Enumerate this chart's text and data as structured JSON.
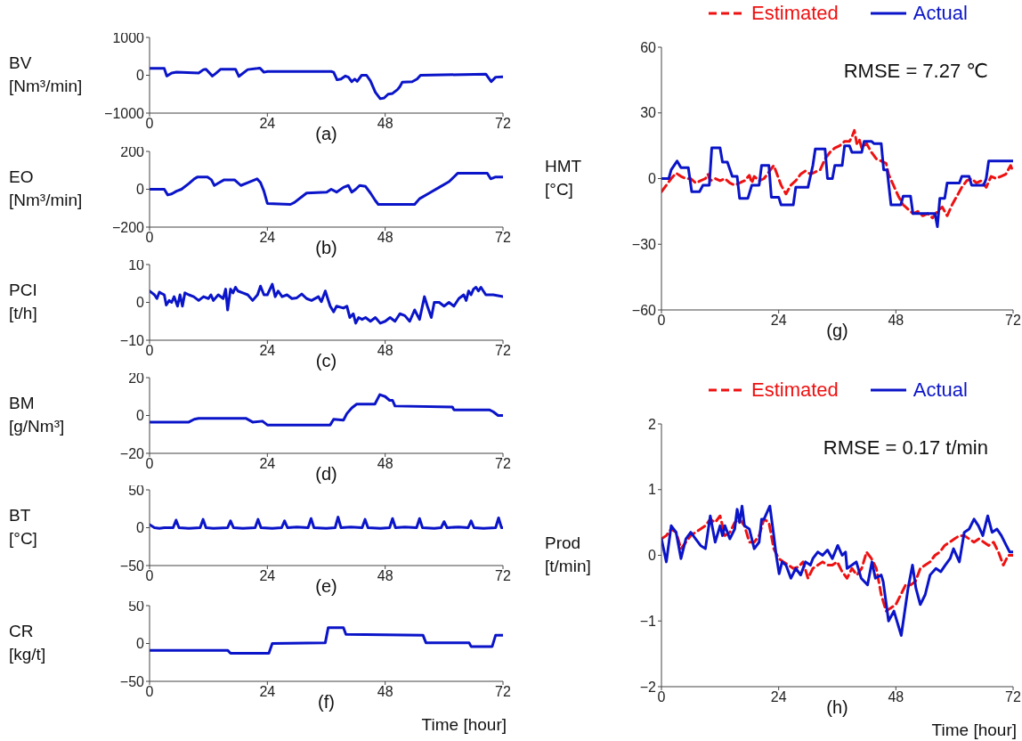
{
  "chart_data": [
    {
      "type": "line",
      "title": "(a)",
      "ylabel": "BV\n[Nm³/min]",
      "xlim": [
        0,
        72
      ],
      "xticks": [
        0,
        24,
        48,
        72
      ],
      "ylim": [
        -1000,
        1000
      ],
      "yticks": [
        -1000,
        0,
        1000
      ],
      "line_style": "solid",
      "series": [
        {
          "color": "#0a14c8",
          "x": [
            0,
            3,
            3.5,
            4.5,
            5.5,
            10,
            11,
            11.5,
            12.8,
            13.5,
            14.5,
            17.5,
            18.2,
            20,
            22,
            22.5,
            23.3,
            24,
            37,
            37.5,
            38.2,
            39,
            39.9,
            40.5,
            41.2,
            41.8,
            42.3,
            43.2,
            44.2,
            45,
            46,
            47,
            47.8,
            48.6,
            49.5,
            50.5,
            51,
            51.5,
            53.5,
            54.5,
            55.2,
            68.5,
            69.6,
            70.5,
            72
          ],
          "values": [
            180,
            180,
            -20,
            60,
            80,
            60,
            150,
            160,
            -20,
            50,
            160,
            160,
            -30,
            150,
            180,
            190,
            80,
            100,
            100,
            80,
            -120,
            -100,
            -20,
            -50,
            -170,
            -100,
            -160,
            0,
            0,
            -150,
            -450,
            -620,
            -600,
            -500,
            -480,
            -380,
            -300,
            -180,
            -170,
            -100,
            0,
            30,
            -170,
            -50,
            -40
          ]
        }
      ]
    },
    {
      "type": "line",
      "title": "(b)",
      "ylabel": "EO\n[Nm³/min]",
      "xlim": [
        0,
        72
      ],
      "xticks": [
        0,
        24,
        48,
        72
      ],
      "ylim": [
        -200,
        200
      ],
      "yticks": [
        -200,
        0,
        200
      ],
      "line_style": "solid",
      "series": [
        {
          "color": "#0a14c8",
          "x": [
            0,
            3,
            3.7,
            4.5,
            5.5,
            6.5,
            8,
            9.1,
            9.8,
            11.8,
            12.6,
            13.2,
            14.2,
            15.2,
            17.3,
            18.6,
            20,
            21.9,
            22.6,
            23.3,
            24,
            28.7,
            29.5,
            31,
            32,
            36.1,
            37,
            38.1,
            39.5,
            40.5,
            41.2,
            42,
            42.8,
            44,
            45,
            46,
            46.6,
            54,
            55,
            57,
            59,
            61,
            62.8,
            68.8,
            69.5,
            70.5,
            72
          ],
          "values": [
            0,
            0,
            -30,
            -25,
            -10,
            0,
            30,
            55,
            65,
            65,
            50,
            20,
            35,
            50,
            50,
            20,
            35,
            55,
            35,
            -10,
            -75,
            -80,
            -70,
            -40,
            -20,
            -15,
            0,
            -15,
            10,
            20,
            -15,
            0,
            20,
            15,
            -20,
            -60,
            -80,
            -80,
            -50,
            -20,
            10,
            40,
            85,
            85,
            55,
            65,
            65
          ]
        }
      ]
    },
    {
      "type": "line",
      "title": "(c)",
      "ylabel": "PCI\n[t/h]",
      "xlim": [
        0,
        72
      ],
      "xticks": [
        0,
        24,
        48,
        72
      ],
      "ylim": [
        -10,
        10
      ],
      "yticks": [
        -10,
        0,
        10
      ],
      "line_style": "solid",
      "series": [
        {
          "color": "#0a14c8",
          "x": [
            0,
            0.5,
            1,
            1.5,
            2,
            2.5,
            3,
            3.4,
            4,
            4.5,
            5,
            5.7,
            6.2,
            6.7,
            7.2,
            8,
            9,
            10,
            11,
            12,
            12.5,
            13,
            14,
            15,
            15.5,
            15.9,
            16.5,
            17,
            17.5,
            18,
            19,
            20,
            21,
            22,
            22.6,
            23.3,
            24,
            25,
            25.6,
            26.2,
            27,
            28,
            29,
            30,
            31,
            32,
            33,
            34.4,
            35,
            35.8,
            36.8,
            37.5,
            38.1,
            39.5,
            40.2,
            40.8,
            41.5,
            42,
            42.6,
            43.3,
            44,
            45,
            46,
            47,
            48,
            49,
            50,
            51,
            52,
            53,
            54,
            55,
            56,
            56.6,
            57.4,
            58,
            59,
            60,
            61,
            62,
            62.5,
            63,
            64,
            64.5,
            65,
            65.5,
            66,
            66.5,
            67,
            67.5,
            68,
            68.5,
            70,
            72
          ],
          "values": [
            3,
            2.5,
            2,
            1,
            2.7,
            2.3,
            2,
            -0.7,
            0.5,
            0,
            1.5,
            -1,
            2,
            -1,
            2.5,
            2,
            1.5,
            0.5,
            1.5,
            1,
            2,
            0.5,
            2,
            1,
            3.5,
            -2,
            3.5,
            2.5,
            4,
            3,
            2.5,
            2,
            0.5,
            2,
            4.3,
            2,
            2,
            4.8,
            1.5,
            3,
            1.5,
            2,
            1,
            1.2,
            2.2,
            1,
            0.5,
            1.5,
            0.2,
            3,
            -1,
            -2.5,
            -1,
            -1.5,
            -1,
            -4,
            -3,
            -5.5,
            -4,
            -4.5,
            -4,
            -5,
            -4,
            -5.5,
            -5,
            -4,
            -5,
            -3,
            -3.5,
            -5,
            -2,
            -4.5,
            1.5,
            -1,
            -4,
            0,
            0,
            -1,
            0,
            -1,
            0,
            1,
            2,
            0.5,
            3,
            2,
            3.5,
            4,
            3,
            4,
            3,
            2,
            2,
            1.5
          ]
        }
      ]
    },
    {
      "type": "line",
      "title": "(d)",
      "ylabel": "BM\n[g/Nm³]",
      "xlim": [
        0,
        72
      ],
      "xticks": [
        0,
        24,
        48,
        72
      ],
      "ylim": [
        -20,
        20
      ],
      "yticks": [
        -20,
        0,
        20
      ],
      "line_style": "solid",
      "series": [
        {
          "color": "#0a14c8",
          "x": [
            0,
            8,
            9.1,
            10,
            19.6,
            21,
            23,
            24,
            36.8,
            37.5,
            39.5,
            40.2,
            41.2,
            42.2,
            45.9,
            46.9,
            48,
            48.9,
            49.5,
            50,
            61.7,
            62,
            69.2,
            70,
            71,
            72
          ],
          "values": [
            -3.5,
            -3.5,
            -2,
            -1.5,
            -1.5,
            -3.5,
            -3,
            -5,
            -5,
            -2,
            -2.5,
            1,
            4,
            6,
            6,
            11,
            10,
            8,
            8,
            5,
            4.5,
            3,
            3,
            2,
            0,
            0
          ]
        }
      ]
    },
    {
      "type": "line",
      "title": "(e)",
      "ylabel": "BT\n[°C]",
      "xlim": [
        0,
        72
      ],
      "xticks": [
        0,
        24,
        48,
        72
      ],
      "ylim": [
        -50,
        50
      ],
      "yticks": [
        -50,
        0,
        50
      ],
      "line_style": "solid",
      "series": [
        {
          "color": "#0a14c8",
          "x": [
            0,
            1,
            2,
            3,
            4.8,
            5.4,
            6,
            8,
            10.3,
            10.9,
            11.5,
            13,
            15.9,
            16.5,
            17.1,
            19,
            21.5,
            22.1,
            22.7,
            25,
            26.9,
            27.5,
            28.1,
            30,
            32.3,
            32.9,
            33.5,
            36,
            37.8,
            38.4,
            39,
            41,
            43.3,
            43.9,
            44.5,
            47,
            48.9,
            49.5,
            50.1,
            52,
            54.4,
            55,
            55.6,
            58,
            59.4,
            60,
            60.6,
            63,
            64.9,
            65.5,
            66.1,
            68,
            70.5,
            71.1,
            71.7,
            72
          ],
          "values": [
            4,
            0,
            -1,
            0,
            0,
            10,
            0,
            -1,
            0,
            11,
            0,
            -1,
            0,
            9,
            0,
            -1,
            0,
            11,
            0,
            -1,
            0,
            9,
            0,
            1,
            0,
            12,
            0,
            -1,
            0,
            14,
            0,
            1,
            0,
            11,
            0,
            -1,
            0,
            12,
            0,
            1,
            0,
            12,
            0,
            -1,
            0,
            8,
            0,
            1,
            0,
            9,
            0,
            -1,
            0,
            13,
            0,
            0
          ]
        }
      ]
    },
    {
      "type": "line",
      "title": "(f)",
      "ylabel": "CR\n[kg/t]",
      "xlabel": "Time [hour]",
      "xlim": [
        0,
        72
      ],
      "xticks": [
        0,
        24,
        48,
        72
      ],
      "ylim": [
        -50,
        50
      ],
      "yticks": [
        -50,
        0,
        50
      ],
      "line_style": "solid",
      "series": [
        {
          "color": "#0a14c8",
          "x": [
            0,
            15.9,
            16.5,
            24.3,
            25,
            35.8,
            36.4,
            39.5,
            40,
            55.7,
            56.3,
            65.1,
            65.5,
            69.8,
            70.5,
            72
          ],
          "values": [
            -9,
            -9,
            -13,
            -13,
            0,
            1,
            21,
            21,
            12,
            11,
            1,
            1,
            -4,
            -4,
            11,
            11
          ]
        }
      ]
    },
    {
      "type": "line",
      "title": "(g)",
      "ylabel": "HMT\n[°C]",
      "xlim": [
        0,
        72
      ],
      "xticks": [
        0,
        24,
        48,
        72
      ],
      "ylim": [
        -60,
        60
      ],
      "yticks": [
        -60,
        -30,
        0,
        30,
        60
      ],
      "legend": "top",
      "annotations": [
        "RMSE = 7.27 ℃"
      ],
      "series": [
        {
          "name": "Estimated",
          "color": "#ee1111",
          "line_style": "dashed",
          "x": [
            0,
            1,
            2,
            3,
            4,
            5,
            6,
            7,
            8,
            9,
            9.5,
            10,
            11,
            12,
            13,
            14,
            15,
            16,
            17,
            18,
            18.5,
            19,
            20,
            21,
            22,
            23,
            24,
            24.5,
            25.5,
            26.5,
            27.5,
            28.5,
            29.5,
            30.5,
            31.5,
            32.5,
            33.5,
            34.5,
            35.5,
            36.5,
            37.5,
            38.5,
            39,
            39.5,
            40,
            40.5,
            41,
            42,
            43,
            44,
            45,
            46,
            46.5,
            47.5,
            48.5,
            49.5,
            50.5,
            51.5,
            52.5,
            53.5,
            54.5,
            55.5,
            56.5,
            57.5,
            58.5,
            59.5,
            60.5,
            61.5,
            62.5,
            63.5,
            64.5,
            65.5,
            66.5,
            67.5,
            68.5,
            69.5,
            70.5,
            71.5,
            72
          ],
          "values": [
            -6,
            -3,
            0,
            2.5,
            1,
            0,
            0,
            -2,
            -1,
            0,
            2,
            -1,
            0,
            -1,
            0,
            -2,
            -3,
            -2,
            -1,
            1.5,
            -2,
            1,
            -1,
            0,
            3,
            6,
            0,
            -3,
            -7,
            -3,
            -1,
            2,
            3.5,
            2,
            3,
            4,
            9,
            12,
            14,
            15,
            17,
            17,
            19,
            22,
            16,
            18,
            14,
            16,
            12,
            9,
            8,
            7,
            2,
            -3,
            -8,
            -12,
            -14,
            -16,
            -15,
            -17,
            -16,
            -18,
            -15,
            -13,
            -17,
            -12,
            -8,
            -4,
            -1,
            0,
            -2,
            -1,
            -4,
            1,
            0,
            1,
            2,
            6,
            3
          ]
        },
        {
          "name": "Actual",
          "color": "#0a14c8",
          "line_style": "solid",
          "x": [
            0,
            1.5,
            2,
            3.2,
            4,
            5.5,
            6.2,
            7.8,
            8.5,
            9.8,
            10.3,
            12,
            12.5,
            13.5,
            14.5,
            15.5,
            16,
            17.7,
            18.5,
            20,
            20.5,
            22,
            22.5,
            24,
            24.5,
            27,
            27.5,
            30,
            31,
            31.5,
            33.5,
            34,
            35,
            35.5,
            37,
            37.5,
            38.5,
            39,
            41,
            41.5,
            43,
            43.5,
            45,
            45.5,
            46.2,
            47,
            49,
            49.5,
            51,
            51.5,
            56,
            56.5,
            57,
            58,
            58.5,
            61,
            61.5,
            63,
            63.5,
            66,
            66.5,
            67,
            72
          ],
          "values": [
            0,
            0,
            4,
            8,
            5,
            5,
            -6,
            -6,
            -3,
            -3,
            14,
            14,
            7.5,
            7.5,
            1,
            1,
            -9,
            -9,
            -3,
            -3,
            6,
            6,
            -8.5,
            -8.5,
            -12,
            -12,
            -4,
            -4,
            6,
            13.5,
            13.5,
            0,
            0,
            6,
            6,
            15,
            15,
            12,
            12,
            17,
            17,
            16,
            16,
            4,
            4,
            -12,
            -12,
            -8,
            -8,
            -16,
            -16,
            -22,
            -9,
            -9,
            -2,
            -2,
            1,
            1,
            -3,
            -3,
            0,
            8,
            8
          ]
        }
      ]
    },
    {
      "type": "line",
      "title": "(h)",
      "ylabel": "Prod\n[t/min]",
      "xlabel": "Time [hour]",
      "xlim": [
        0,
        72
      ],
      "xticks": [
        0,
        24,
        48,
        72
      ],
      "ylim": [
        -2,
        2
      ],
      "yticks": [
        -2,
        -1,
        0,
        1,
        2
      ],
      "legend": "top",
      "annotations": [
        "RMSE = 0.17 t/min"
      ],
      "series": [
        {
          "name": "Estimated",
          "color": "#ee1111",
          "line_style": "dashed",
          "x": [
            0,
            1,
            2,
            3,
            4,
            5,
            6,
            7,
            8,
            9,
            10,
            11,
            12,
            13,
            14,
            15,
            16,
            17,
            18,
            19,
            20,
            21,
            22,
            23,
            24,
            25,
            26,
            27,
            28,
            29,
            30,
            31,
            32,
            33,
            34,
            35,
            36,
            37,
            38,
            39,
            40,
            41,
            42,
            43,
            44,
            45,
            46,
            47,
            48,
            49,
            50,
            51,
            52,
            53,
            54,
            55,
            56,
            57,
            58,
            59,
            60,
            61,
            62,
            63,
            64,
            65,
            66,
            67,
            68,
            69,
            70,
            71,
            72
          ],
          "values": [
            0.25,
            0.3,
            0.4,
            0.35,
            0.1,
            0.2,
            0.3,
            0.35,
            0.4,
            0.45,
            0.55,
            0.5,
            0.6,
            0.3,
            0.35,
            0.5,
            0.55,
            0.45,
            0.2,
            0.2,
            0.3,
            0.55,
            0.5,
            0.1,
            -0.05,
            -0.1,
            -0.15,
            -0.2,
            -0.18,
            -0.1,
            -0.35,
            -0.2,
            -0.15,
            -0.1,
            -0.15,
            -0.15,
            -0.1,
            -0.25,
            -0.35,
            -0.2,
            -0.3,
            -0.2,
            0.05,
            -0.05,
            -0.2,
            -0.6,
            -0.85,
            -0.8,
            -0.75,
            -0.6,
            -0.45,
            -0.45,
            -0.4,
            -0.2,
            -0.15,
            -0.1,
            0,
            0.05,
            0.15,
            0.2,
            0.25,
            0.3,
            0.3,
            0.25,
            0.2,
            0.25,
            0.2,
            0.15,
            0.2,
            0.05,
            -0.15,
            0,
            0
          ]
        },
        {
          "name": "Actual",
          "color": "#0a14c8",
          "line_style": "solid",
          "x": [
            0,
            1,
            2,
            3,
            4,
            5,
            6,
            7,
            8,
            9,
            10,
            11,
            12,
            12.5,
            13,
            14,
            15,
            15.5,
            16,
            16.5,
            17,
            18,
            19,
            20,
            20.5,
            21,
            22.2,
            23,
            23.5,
            24.1,
            24.7,
            25.5,
            26.5,
            27.5,
            28.5,
            29.5,
            30.5,
            31,
            32,
            33,
            34,
            35,
            36.1,
            37,
            37.7,
            38,
            39,
            39.9,
            40.9,
            42.2,
            43.1,
            43.8,
            45,
            45.4,
            46.5,
            47.6,
            49.1,
            50.5,
            51.4,
            52.1,
            53,
            54,
            55,
            56.2,
            57.2,
            58.1,
            59.1,
            59.8,
            61,
            62,
            63,
            64,
            64.9,
            65.8,
            66.8,
            67.7,
            68.7,
            69.6,
            70.6,
            71.3,
            72
          ],
          "values": [
            0.25,
            -0.1,
            0.45,
            0.35,
            -0.05,
            0.25,
            0.35,
            0.25,
            0.15,
            0.1,
            0.6,
            0.2,
            0.45,
            0.3,
            0.45,
            0.25,
            0.4,
            0.7,
            0.5,
            0.75,
            0.45,
            0.4,
            0.1,
            0.2,
            0.55,
            0.55,
            0.75,
            0.3,
            0,
            -0.28,
            -0.1,
            -0.15,
            -0.35,
            -0.2,
            -0.3,
            -0.1,
            -0.15,
            -0.05,
            0.05,
            0,
            0.08,
            -0.05,
            0.15,
            0,
            0.05,
            -0.2,
            -0.15,
            -0.1,
            -0.35,
            -0.45,
            -0.1,
            -0.35,
            -0.3,
            -0.4,
            -1,
            -0.85,
            -1.22,
            -0.5,
            -0.15,
            -0.5,
            -0.75,
            -0.6,
            -0.3,
            -0.2,
            -0.25,
            -0.15,
            -0.05,
            0.1,
            -0.1,
            0.35,
            0.4,
            0.55,
            0.45,
            0.3,
            0.6,
            0.35,
            0.4,
            0.3,
            0.15,
            0.05,
            0.05
          ]
        }
      ]
    }
  ]
}
